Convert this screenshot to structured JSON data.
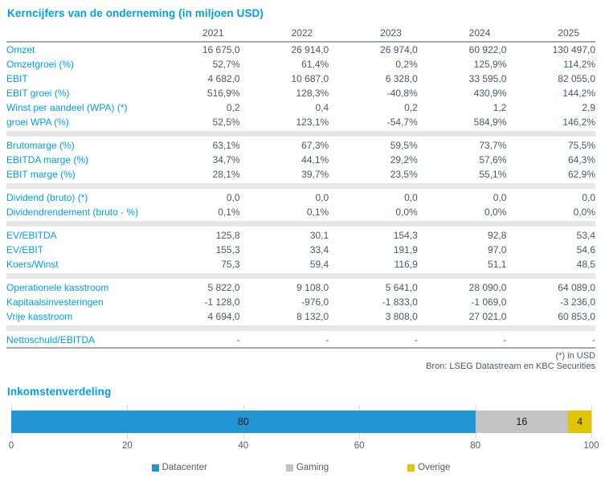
{
  "report": {
    "table": {
      "title": "Kerncijfers van de onderneming (in miljoen USD)",
      "years": [
        "2021",
        "2022",
        "2023",
        "2024",
        "2025"
      ],
      "sections": [
        {
          "rows": [
            {
              "label": "Omzet",
              "values": [
                "16 675,0",
                "26 914,0",
                "26 974,0",
                "60 922,0",
                "130 497,0"
              ]
            },
            {
              "label": "Omzetgroei (%)",
              "values": [
                "52,7%",
                "61,4%",
                "0,2%",
                "125,9%",
                "114,2%"
              ]
            },
            {
              "label": "EBIT",
              "values": [
                "4 682,0",
                "10 687,0",
                "6 328,0",
                "33 595,0",
                "82 055,0"
              ]
            },
            {
              "label": "EBIT groei (%)",
              "values": [
                "516,9%",
                "128,3%",
                "-40,8%",
                "430,9%",
                "144,2%"
              ]
            },
            {
              "label": "Winst per aandeel (WPA) (*)",
              "values": [
                "0,2",
                "0,4",
                "0,2",
                "1,2",
                "2,9"
              ]
            },
            {
              "label": "groei WPA (%)",
              "values": [
                "52,5%",
                "123,1%",
                "-54,7%",
                "584,9%",
                "146,2%"
              ]
            }
          ]
        },
        {
          "rows": [
            {
              "label": "Brutomarge (%)",
              "values": [
                "63,1%",
                "67,3%",
                "59,5%",
                "73,7%",
                "75,5%"
              ]
            },
            {
              "label": "EBITDA marge (%)",
              "values": [
                "34,7%",
                "44,1%",
                "29,2%",
                "57,6%",
                "64,3%"
              ]
            },
            {
              "label": "EBIT marge (%)",
              "values": [
                "28,1%",
                "39,7%",
                "23,5%",
                "55,1%",
                "62,9%"
              ]
            }
          ]
        },
        {
          "rows": [
            {
              "label": "Dividend (bruto) (*)",
              "values": [
                "0,0",
                "0,0",
                "0,0",
                "0,0",
                "0,0"
              ]
            },
            {
              "label": "Dividendrendement (bruto - %)",
              "values": [
                "0,1%",
                "0,1%",
                "0,0%",
                "0,0%",
                "0,0%"
              ]
            }
          ]
        },
        {
          "rows": [
            {
              "label": "EV/EBITDA",
              "values": [
                "125,8",
                "30,1",
                "154,3",
                "92,8",
                "53,4"
              ]
            },
            {
              "label": "EV/EBIT",
              "values": [
                "155,3",
                "33,4",
                "191,9",
                "97,0",
                "54,6"
              ]
            },
            {
              "label": "Koers/Winst",
              "values": [
                "75,3",
                "59,4",
                "116,9",
                "51,1",
                "48,5"
              ]
            }
          ]
        },
        {
          "rows": [
            {
              "label": "Operationele kasstroom",
              "values": [
                "5 822,0",
                "9 108,0",
                "5 641,0",
                "28 090,0",
                "64 089,0"
              ]
            },
            {
              "label": "Kapitaalsinvesteringen",
              "values": [
                "-1 128,0",
                "-976,0",
                "-1 833,0",
                "-1 069,0",
                "-3 236,0"
              ]
            },
            {
              "label": "Vrije kasstroom",
              "values": [
                "4 694,0",
                "8 132,0",
                "3 808,0",
                "27 021,0",
                "60 853,0"
              ]
            }
          ]
        },
        {
          "rows": [
            {
              "label": "Nettoschuld/EBITDA",
              "values": [
                "-",
                "-",
                "-",
                "-",
                "-"
              ]
            }
          ]
        }
      ]
    },
    "footnotes": [
      "(*) in USD",
      "Bron: LSEG Datastream en KBC Securities"
    ]
  },
  "chart_data": {
    "type": "bar",
    "orientation": "horizontal-stacked",
    "title": "Inkomstenverdeling",
    "categories": [
      "Inkomstenverdeling"
    ],
    "series": [
      {
        "name": "Datacenter",
        "values": [
          80
        ],
        "color": "#2296d4"
      },
      {
        "name": "Gaming",
        "values": [
          16
        ],
        "color": "#c3c3c3"
      },
      {
        "name": "Overige",
        "values": [
          4
        ],
        "color": "#e2c400"
      }
    ],
    "xlim": [
      0,
      100
    ],
    "xticks": [
      0,
      20,
      40,
      60,
      80,
      100
    ],
    "grid": true,
    "legend_position": "bottom"
  },
  "colors": {
    "accent_blue": "#00a0e1",
    "value_text": "#47596a",
    "separator_band": "#e7e7e7",
    "rule_line": "#a9a9a9",
    "gridline": "#d9d9d9"
  }
}
